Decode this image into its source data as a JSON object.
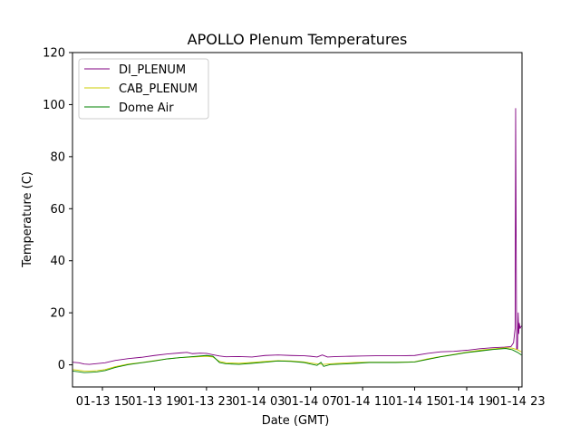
{
  "chart_data": {
    "type": "line",
    "title": "APOLLO Plenum Temperatures",
    "xlabel": "Date (GMT)",
    "ylabel": "Temperature (C)",
    "xlim": [
      12.7,
      47.25
    ],
    "ylim": [
      -8.5,
      120
    ],
    "x_unit": "hours since 01-13 00:00 GMT",
    "x_ticks": [
      {
        "value": 15,
        "label": "01-13 15"
      },
      {
        "value": 19,
        "label": "01-13 19"
      },
      {
        "value": 23,
        "label": "01-13 23"
      },
      {
        "value": 27,
        "label": "01-14 03"
      },
      {
        "value": 31,
        "label": "01-14 07"
      },
      {
        "value": 35,
        "label": "01-14 11"
      },
      {
        "value": 39,
        "label": "01-14 15"
      },
      {
        "value": 43,
        "label": "01-14 19"
      },
      {
        "value": 47,
        "label": "01-14 23"
      }
    ],
    "y_ticks": [
      0,
      20,
      40,
      60,
      80,
      100,
      120
    ],
    "grid": false,
    "legend_position": "top-left",
    "series": [
      {
        "name": "DI_PLENUM",
        "color": "#800080",
        "points": [
          [
            12.7,
            1.0
          ],
          [
            13.2,
            0.8
          ],
          [
            13.6,
            0.3
          ],
          [
            14.0,
            0.2
          ],
          [
            14.6,
            0.5
          ],
          [
            15.2,
            0.8
          ],
          [
            16.0,
            1.7
          ],
          [
            17.0,
            2.4
          ],
          [
            18.0,
            2.9
          ],
          [
            19.0,
            3.6
          ],
          [
            20.0,
            4.2
          ],
          [
            21.0,
            4.6
          ],
          [
            21.5,
            4.8
          ],
          [
            21.9,
            4.3
          ],
          [
            22.5,
            4.5
          ],
          [
            23.0,
            4.4
          ],
          [
            23.5,
            3.9
          ],
          [
            24.0,
            3.4
          ],
          [
            24.5,
            3.1
          ],
          [
            25.5,
            3.2
          ],
          [
            26.5,
            3.0
          ],
          [
            27.5,
            3.6
          ],
          [
            28.5,
            3.8
          ],
          [
            29.5,
            3.6
          ],
          [
            30.5,
            3.5
          ],
          [
            31.0,
            3.3
          ],
          [
            31.5,
            3.0
          ],
          [
            31.9,
            3.8
          ],
          [
            32.3,
            3.0
          ],
          [
            33.0,
            3.2
          ],
          [
            34.0,
            3.3
          ],
          [
            35.0,
            3.4
          ],
          [
            36.0,
            3.5
          ],
          [
            37.0,
            3.5
          ],
          [
            38.0,
            3.5
          ],
          [
            39.0,
            3.6
          ],
          [
            40.0,
            4.4
          ],
          [
            41.0,
            5.0
          ],
          [
            42.0,
            5.2
          ],
          [
            43.0,
            5.6
          ],
          [
            44.0,
            6.2
          ],
          [
            45.0,
            6.6
          ],
          [
            45.9,
            6.8
          ],
          [
            46.4,
            7.0
          ],
          [
            46.6,
            8.5
          ],
          [
            46.72,
            14.0
          ],
          [
            46.76,
            98.5
          ],
          [
            46.8,
            50.0
          ],
          [
            46.84,
            6.0
          ],
          [
            46.9,
            6.0
          ],
          [
            46.96,
            20.0
          ],
          [
            47.0,
            12.0
          ],
          [
            47.04,
            16.0
          ],
          [
            47.1,
            14.0
          ],
          [
            47.2,
            15.0
          ]
        ]
      },
      {
        "name": "CAB_PLENUM",
        "color": "#cccc00",
        "points": [
          [
            12.7,
            -1.8
          ],
          [
            13.2,
            -2.1
          ],
          [
            13.6,
            -2.4
          ],
          [
            14.0,
            -2.4
          ],
          [
            14.6,
            -2.2
          ],
          [
            15.2,
            -1.8
          ],
          [
            16.0,
            -0.7
          ],
          [
            17.0,
            0.3
          ],
          [
            18.0,
            0.9
          ],
          [
            19.0,
            1.6
          ],
          [
            20.0,
            2.3
          ],
          [
            21.0,
            2.8
          ],
          [
            22.0,
            3.0
          ],
          [
            23.0,
            3.3
          ],
          [
            23.5,
            3.0
          ],
          [
            24.0,
            1.3
          ],
          [
            24.5,
            0.8
          ],
          [
            25.5,
            0.6
          ],
          [
            26.5,
            0.9
          ],
          [
            27.5,
            1.3
          ],
          [
            28.5,
            1.6
          ],
          [
            29.5,
            1.5
          ],
          [
            30.5,
            1.1
          ],
          [
            31.0,
            0.7
          ],
          [
            31.5,
            0.4
          ],
          [
            32.0,
            0.2
          ],
          [
            32.5,
            0.4
          ],
          [
            33.5,
            0.7
          ],
          [
            34.5,
            0.9
          ],
          [
            35.5,
            1.0
          ],
          [
            36.5,
            1.0
          ],
          [
            37.5,
            1.0
          ],
          [
            38.5,
            1.1
          ],
          [
            39.0,
            1.2
          ],
          [
            40.0,
            2.3
          ],
          [
            41.0,
            3.2
          ],
          [
            42.0,
            4.0
          ],
          [
            43.0,
            4.9
          ],
          [
            44.0,
            5.6
          ],
          [
            45.0,
            6.1
          ],
          [
            46.0,
            6.6
          ],
          [
            46.5,
            6.4
          ],
          [
            46.9,
            5.8
          ],
          [
            47.2,
            5.0
          ]
        ]
      },
      {
        "name": "Dome Air",
        "color": "#008000",
        "points": [
          [
            12.7,
            -2.4
          ],
          [
            13.2,
            -2.7
          ],
          [
            13.6,
            -3.0
          ],
          [
            14.0,
            -2.9
          ],
          [
            14.6,
            -2.7
          ],
          [
            15.2,
            -2.2
          ],
          [
            16.0,
            -1.0
          ],
          [
            17.0,
            0.1
          ],
          [
            18.0,
            0.8
          ],
          [
            19.0,
            1.5
          ],
          [
            20.0,
            2.3
          ],
          [
            21.0,
            2.8
          ],
          [
            22.0,
            3.2
          ],
          [
            23.0,
            3.6
          ],
          [
            23.5,
            3.3
          ],
          [
            24.0,
            0.9
          ],
          [
            24.5,
            0.4
          ],
          [
            25.5,
            0.2
          ],
          [
            26.5,
            0.6
          ],
          [
            27.5,
            1.0
          ],
          [
            28.5,
            1.5
          ],
          [
            29.5,
            1.3
          ],
          [
            30.5,
            0.9
          ],
          [
            31.0,
            0.3
          ],
          [
            31.5,
            -0.2
          ],
          [
            31.8,
            1.0
          ],
          [
            32.0,
            -0.6
          ],
          [
            32.5,
            0.1
          ],
          [
            33.5,
            0.3
          ],
          [
            34.5,
            0.6
          ],
          [
            35.5,
            0.9
          ],
          [
            36.5,
            0.9
          ],
          [
            37.5,
            0.9
          ],
          [
            38.5,
            1.0
          ],
          [
            39.0,
            1.1
          ],
          [
            40.0,
            2.1
          ],
          [
            41.0,
            3.1
          ],
          [
            42.0,
            3.9
          ],
          [
            43.0,
            4.7
          ],
          [
            44.0,
            5.3
          ],
          [
            45.0,
            5.9
          ],
          [
            46.0,
            6.3
          ],
          [
            46.5,
            5.8
          ],
          [
            46.9,
            4.8
          ],
          [
            47.2,
            3.8
          ]
        ]
      }
    ]
  }
}
